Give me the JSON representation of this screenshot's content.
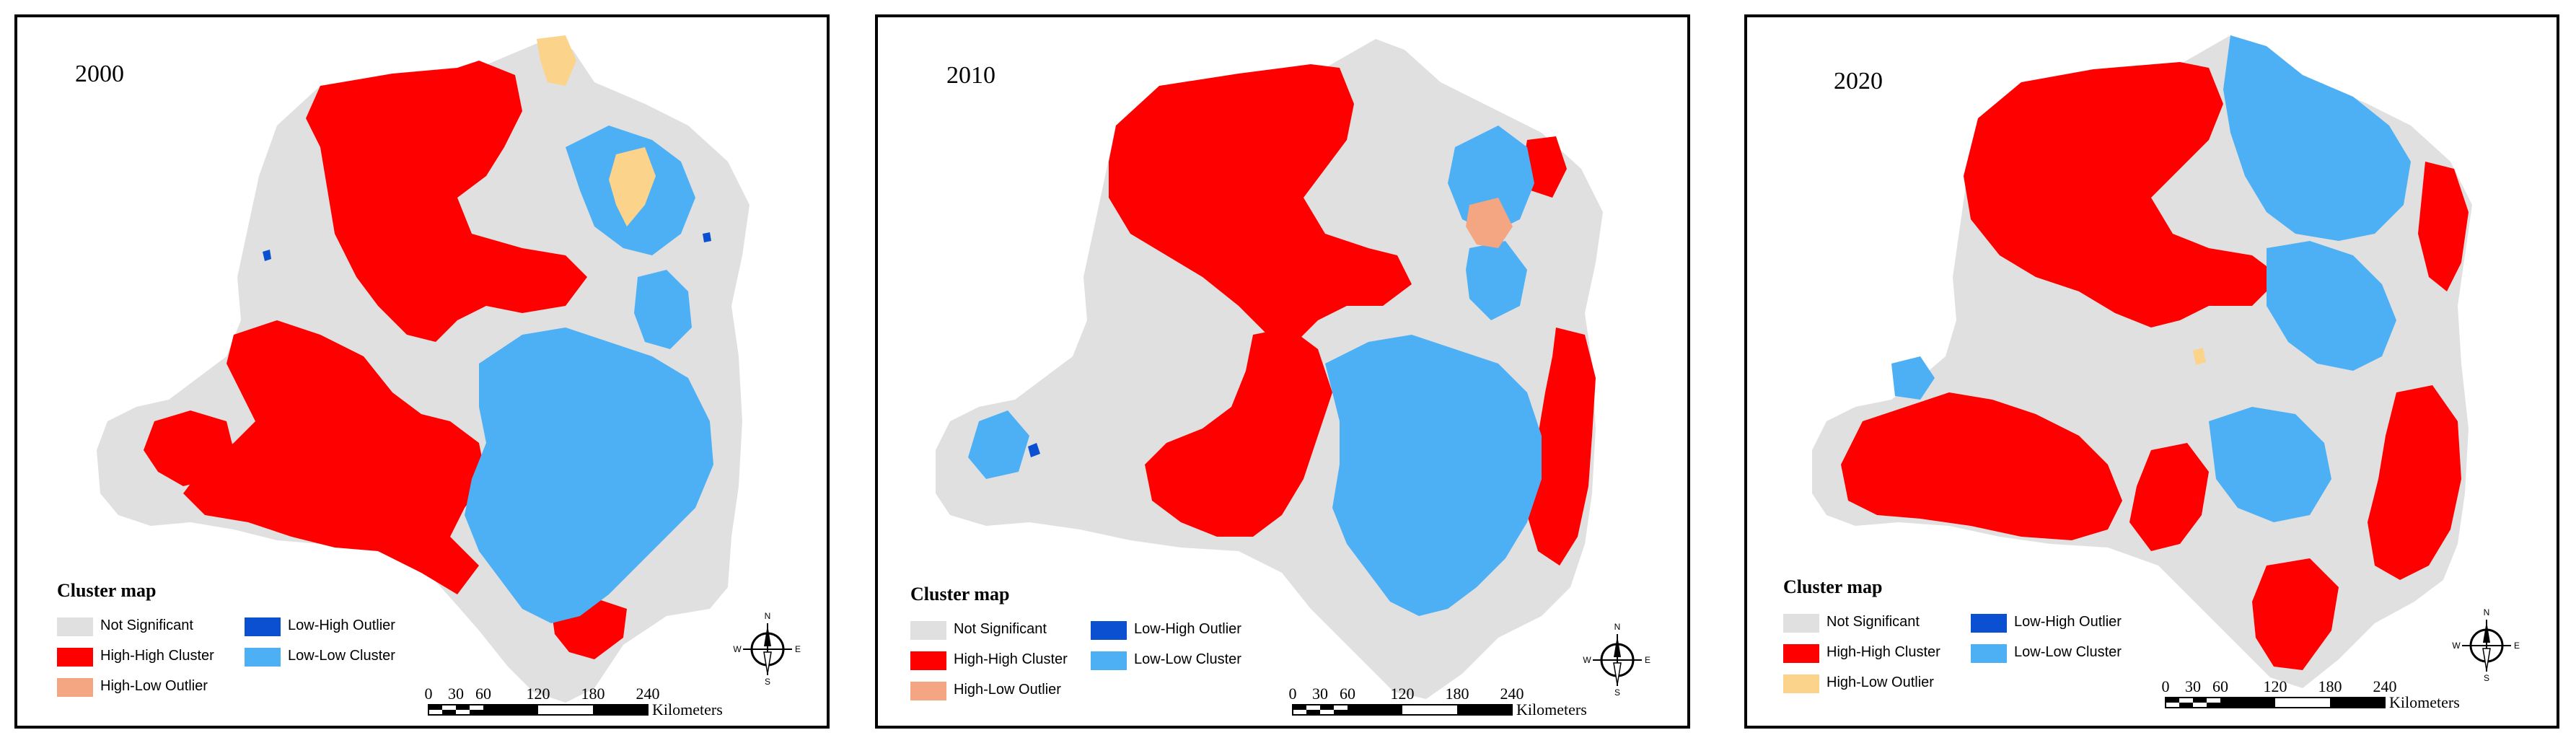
{
  "colors": {
    "not_significant": "#e0e0e0",
    "high_high": "#ff0000",
    "high_low": "#f4a582",
    "low_high": "#0a50d0",
    "low_low": "#4db0f5",
    "yellow_outlier": "#fbd38a"
  },
  "panels": [
    {
      "year": "2000",
      "legend": {
        "title": "Cluster map",
        "items": [
          {
            "label": "Not Significant",
            "color": "#e0e0e0"
          },
          {
            "label": "High-High Cluster",
            "color": "#ff0000"
          },
          {
            "label": "High-Low Outlier",
            "color": "#f4a582"
          },
          {
            "label": "Low-High Outlier",
            "color": "#0a50d0"
          },
          {
            "label": "Low-Low Cluster",
            "color": "#4db0f5"
          }
        ]
      },
      "scale": {
        "ticks": [
          "0",
          "30",
          "60",
          "120",
          "180",
          "240"
        ],
        "unit": "Kilometers"
      },
      "compass": {
        "n": "N",
        "s": "S",
        "e": "E",
        "w": "W"
      }
    },
    {
      "year": "2010",
      "legend": {
        "title": "Cluster map",
        "items": [
          {
            "label": "Not Significant",
            "color": "#e0e0e0"
          },
          {
            "label": "High-High Cluster",
            "color": "#ff0000"
          },
          {
            "label": "High-Low Outlier",
            "color": "#f4a582"
          },
          {
            "label": "Low-High Outlier",
            "color": "#0a50d0"
          },
          {
            "label": "Low-Low Cluster",
            "color": "#4db0f5"
          }
        ]
      },
      "scale": {
        "ticks": [
          "0",
          "30",
          "60",
          "120",
          "180",
          "240"
        ],
        "unit": "Kilometers"
      },
      "compass": {
        "n": "N",
        "s": "S",
        "e": "E",
        "w": "W"
      }
    },
    {
      "year": "2020",
      "legend": {
        "title": "Cluster map",
        "items": [
          {
            "label": "Not Significant",
            "color": "#e0e0e0"
          },
          {
            "label": "High-High Cluster",
            "color": "#ff0000"
          },
          {
            "label": "High-Low Outlier",
            "color": "#fbd38a"
          },
          {
            "label": "Low-High Outlier",
            "color": "#0a50d0"
          },
          {
            "label": "Low-Low Cluster",
            "color": "#4db0f5"
          }
        ]
      },
      "scale": {
        "ticks": [
          "0",
          "30",
          "60",
          "120",
          "180",
          "240"
        ],
        "unit": "Kilometers"
      },
      "compass": {
        "n": "N",
        "s": "S",
        "e": "E",
        "w": "W"
      }
    }
  ]
}
